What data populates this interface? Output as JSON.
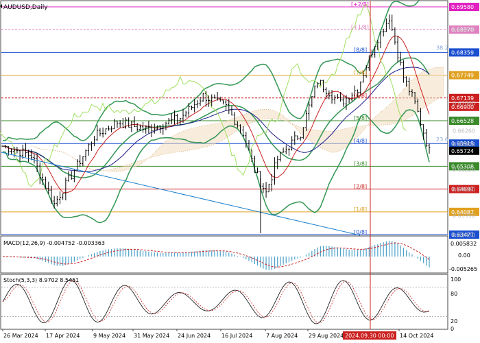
{
  "title": "AUDUSD,Daily",
  "colors": {
    "bollinger": "#3a9a5a",
    "ichimoku_lead": "#a0e060",
    "kijun": "#1a1a8a",
    "tenkan": "#cc2020",
    "cloud": "#d09a5a",
    "macd": "#4aa0c8",
    "signal": "#cc2020",
    "current_price_bg": "#000000",
    "date_marker": "#cc2020",
    "murray_pink": "#e020c0",
    "murray_blue": "#1a4fcf",
    "murray_orange": "#e0a020",
    "murray_red": "#cc2020",
    "murray_green": "#3a8a2a"
  },
  "murray_levels": [
    {
      "label": "[+2/8]",
      "price": "0.69580",
      "color": "#e020c0"
    },
    {
      "label": "[+1/8]",
      "price": "0.68970",
      "color": "#e080c0"
    },
    {
      "label": "[8/8]",
      "price": "0.68359",
      "color": "#1a4fcf"
    },
    {
      "label": "[7/8]",
      "price": "0.67749",
      "color": "#e0a020"
    },
    {
      "label": "[6/8]",
      "price": "0.67139",
      "color": "#cc2020"
    },
    {
      "label": "[5/8]",
      "price": "0.66528",
      "color": "#3a8a2a"
    },
    {
      "label": "[4/8]",
      "price": "0.65918",
      "color": "#1a4fcf"
    },
    {
      "label": "[3/8]",
      "price": "0.65308",
      "color": "#3a8a2a"
    },
    {
      "label": "[2/8]",
      "price": "0.64697",
      "color": "#cc2020"
    },
    {
      "label": "[1/8]",
      "price": "0.64087",
      "color": "#e0a020"
    },
    {
      "label": "[0/8]",
      "price": "0.63477",
      "color": "#1a4fcf"
    }
  ],
  "extra_price_tags": [
    {
      "price": "0.66900",
      "color": "#cc2020"
    },
    {
      "price": "0.65724",
      "color": "#000000"
    }
  ],
  "faint_axis_labels": [
    "0.68970",
    "0.67000",
    "0.66260",
    "0.65900",
    "0.65220",
    "0.64690",
    "0.63990",
    "0.63470"
  ],
  "fib_labels": [
    "38.2",
    "23.6"
  ],
  "macd": {
    "label": "MACD(12,26,9) -0.004752 -0.003363",
    "axis": [
      "0.005832",
      "0.00",
      "-0.005265"
    ]
  },
  "stoch": {
    "label": "Stoch(5,3,3) 8.9702 8.5451",
    "axis": [
      "100",
      "80",
      "20",
      "0"
    ]
  },
  "x_labels": [
    "26 Mar 2024",
    "17 Apr 2024",
    "9 May 2024",
    "31 May 2024",
    "24 Jun 2024",
    "16 Jul 2024",
    "7 Aug 2024",
    "29 Aug 2024",
    "14 Oct 2024"
  ],
  "date_marker_label": "2024.09.30 00:00"
}
